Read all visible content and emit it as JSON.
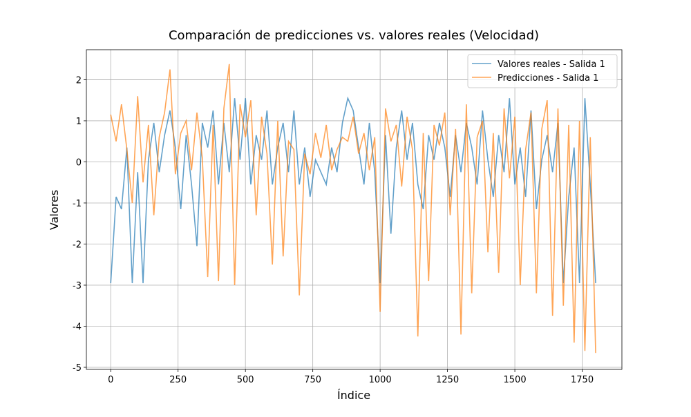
{
  "chart_data": {
    "type": "line",
    "title": "Comparación de predicciones vs. valores reales (Velocidad)",
    "x_label": "Índice",
    "y_label": "Valores",
    "x": [
      0,
      20,
      40,
      60,
      80,
      100,
      120,
      140,
      160,
      180,
      200,
      220,
      240,
      260,
      280,
      300,
      320,
      340,
      360,
      380,
      400,
      420,
      440,
      460,
      480,
      500,
      520,
      540,
      560,
      580,
      600,
      620,
      640,
      660,
      680,
      700,
      720,
      740,
      760,
      780,
      800,
      820,
      840,
      860,
      880,
      900,
      920,
      940,
      960,
      980,
      1000,
      1020,
      1040,
      1060,
      1080,
      1100,
      1120,
      1140,
      1160,
      1180,
      1200,
      1220,
      1240,
      1260,
      1280,
      1300,
      1320,
      1340,
      1360,
      1380,
      1400,
      1420,
      1440,
      1460,
      1480,
      1500,
      1520,
      1540,
      1560,
      1580,
      1600,
      1620,
      1640,
      1660,
      1680,
      1700,
      1720,
      1740,
      1760,
      1780,
      1800
    ],
    "series": [
      {
        "name": "Valores reales - Salida 1",
        "color": "#1f77b4",
        "values": [
          -2.95,
          -0.85,
          -1.15,
          0.35,
          -2.95,
          -0.25,
          -2.95,
          0.05,
          0.95,
          -0.25,
          0.65,
          1.25,
          0.35,
          -1.15,
          0.65,
          -0.55,
          -2.05,
          0.95,
          0.35,
          1.25,
          -0.55,
          0.95,
          -0.25,
          1.55,
          0.05,
          1.55,
          -0.55,
          0.65,
          0.05,
          1.25,
          -0.55,
          0.35,
          0.95,
          -0.25,
          1.25,
          -0.55,
          0.35,
          -0.85,
          0.05,
          -0.25,
          -0.55,
          0.35,
          -0.25,
          0.95,
          1.55,
          1.25,
          0.35,
          -0.55,
          0.95,
          -0.25,
          -2.95,
          0.65,
          -1.75,
          0.35,
          1.25,
          0.05,
          0.95,
          -0.55,
          -1.15,
          0.65,
          0.05,
          0.95,
          0.35,
          -0.85,
          0.65,
          -0.25,
          0.95,
          0.35,
          -0.55,
          1.25,
          0.05,
          -0.85,
          0.65,
          -0.25,
          1.55,
          -0.55,
          0.35,
          -0.85,
          1.25,
          -1.15,
          0.05,
          0.65,
          -0.25,
          0.95,
          -2.95,
          -0.85,
          0.35,
          -2.95,
          1.55,
          -0.55,
          -2.95
        ]
      },
      {
        "name": "Predicciones - Salida 1",
        "color": "#ff7f0e",
        "values": [
          1.15,
          0.5,
          1.4,
          0.3,
          -1.0,
          1.6,
          -0.5,
          0.9,
          -1.3,
          0.6,
          1.2,
          2.25,
          -0.3,
          0.7,
          1.0,
          -0.2,
          1.2,
          0.1,
          -2.8,
          0.9,
          -2.9,
          1.3,
          2.38,
          -3.0,
          1.4,
          0.6,
          1.5,
          -1.3,
          1.1,
          0.2,
          -2.5,
          1.0,
          -2.3,
          0.5,
          0.3,
          -3.25,
          0.2,
          -0.3,
          0.7,
          0.1,
          0.9,
          -0.2,
          0.3,
          0.6,
          0.5,
          1.1,
          0.2,
          0.7,
          -0.2,
          0.6,
          -3.65,
          1.3,
          0.5,
          0.9,
          -0.6,
          1.1,
          0.3,
          -4.25,
          0.7,
          -2.9,
          0.9,
          0.4,
          1.2,
          -1.3,
          0.8,
          -4.2,
          1.4,
          -3.2,
          0.6,
          1.0,
          -2.2,
          0.7,
          -2.7,
          1.3,
          -0.4,
          1.1,
          -3.0,
          0.3,
          1.2,
          -3.2,
          0.8,
          1.5,
          -3.75,
          1.3,
          -3.5,
          0.9,
          -4.4,
          1.0,
          -4.6,
          0.6,
          -4.65
        ]
      }
    ],
    "xlim": [
      -90.35,
      1897.35
    ],
    "ylim": [
      -5.05,
      2.73
    ],
    "xticks": [
      0,
      250,
      500,
      750,
      1000,
      1250,
      1500,
      1750
    ],
    "yticks": [
      -5,
      -4,
      -3,
      -2,
      -1,
      0,
      1,
      2
    ],
    "grid": true,
    "legend": "upper right",
    "line_alpha": 0.7
  }
}
